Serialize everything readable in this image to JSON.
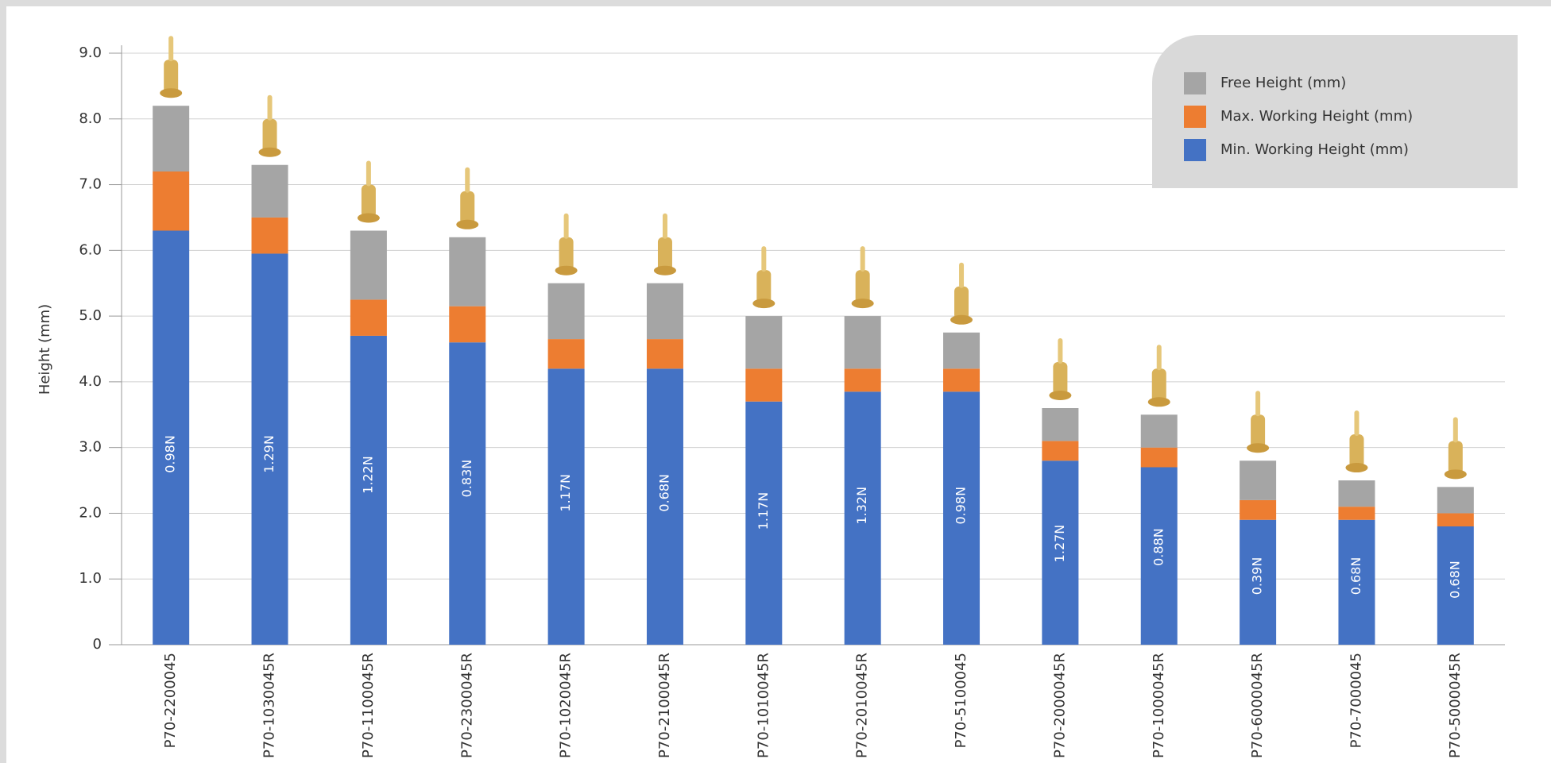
{
  "chart_data": {
    "type": "stacked_bar",
    "y_label": "Height (mm)",
    "categories": [
      "P70-2200045",
      "P70-1030045R",
      "P70-1100045R",
      "P70-2300045R",
      "P70-1020045R",
      "P70-2100045R",
      "P70-1010045R",
      "P70-2010045R",
      "P70-5100045",
      "P70-2000045R",
      "P70-1000045R",
      "P70-6000045R",
      "P70-7000045",
      "P70-5000045R"
    ],
    "series": [
      {
        "name": "Free Height (mm)",
        "color": "#a5a5a5",
        "values": [
          1.0,
          0.8,
          1.05,
          1.05,
          0.85,
          0.85,
          0.8,
          0.8,
          0.55,
          0.5,
          0.5,
          0.6,
          0.4,
          0.4
        ]
      },
      {
        "name": "Max. Working Height (mm)",
        "color": "#ed7d31",
        "values": [
          0.9,
          0.55,
          0.55,
          0.55,
          0.45,
          0.45,
          0.5,
          0.35,
          0.35,
          0.3,
          0.3,
          0.3,
          0.2,
          0.2
        ]
      },
      {
        "name": "Min. Working Height (mm)",
        "color": "#4472c4",
        "values": [
          6.3,
          5.95,
          4.7,
          4.6,
          4.2,
          4.2,
          3.7,
          3.85,
          3.85,
          2.8,
          2.7,
          1.9,
          1.9,
          1.8
        ],
        "annotations": [
          "0.98N",
          "1.29N",
          "1.22N",
          "0.83N",
          "1.17N",
          "0.68N",
          "1.17N",
          "1.32N",
          "0.98N",
          "1.27N",
          "0.88N",
          "0.39N",
          "0.68N",
          "0.68N"
        ]
      }
    ],
    "ylim": [
      0,
      9
    ],
    "yticks": [
      0,
      {
        "value": 1,
        "label": "1.0"
      },
      {
        "value": 2,
        "label": "2.0"
      },
      {
        "value": 3,
        "label": "3.0"
      },
      {
        "value": 4,
        "label": "4.0"
      },
      {
        "value": 5,
        "label": "5.0"
      },
      {
        "value": 6,
        "label": "6.0"
      },
      {
        "value": 7,
        "label": "7.0"
      },
      {
        "value": 8,
        "label": "8.0"
      },
      {
        "value": 9,
        "label": "9.0"
      }
    ],
    "grid": true,
    "legend": "top-right"
  }
}
